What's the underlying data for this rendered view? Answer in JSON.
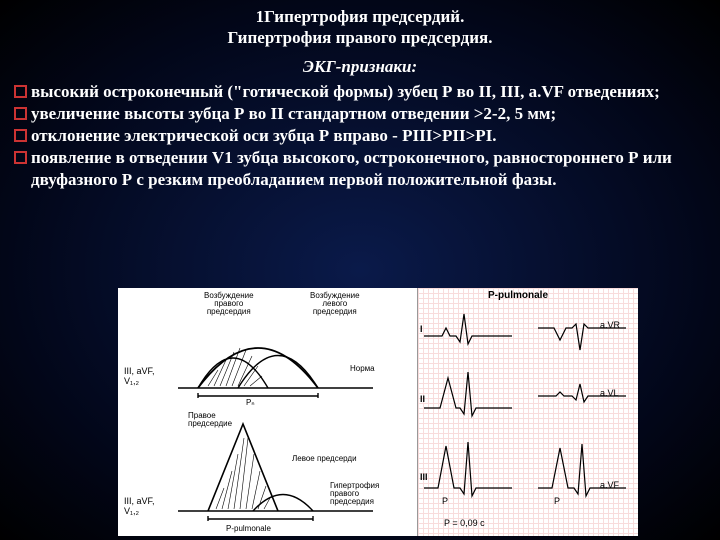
{
  "title1": "1Гипертрофия предсердий.",
  "title2": "Гипертрофия правого предсердия.",
  "subtitle": "ЭКГ-признаки:",
  "bullets": [
    "высокий остроконечный (\"готической формы) зубец Р во II, III, a.VF отведениях;",
    "увеличение высоты зубца Р во II стандартном отведении >2-2, 5 мм;",
    "отклонение электрической оси зубца Р вправо - PIII>PII>PI.",
    "появление в отведении V1 зубца высокого, остроконечного, равностороннего Р или двуфазного Р с резким преобладанием первой положительной фазы."
  ],
  "figure": {
    "left": {
      "top_labels": {
        "right_atrium": "Возбуждение\nправого\nпредсердия",
        "left_atrium": "Возбуждение\nлевого\nпредсердия",
        "norma": "Норма",
        "leads_top": "III, aVF,\nV₁,₂",
        "pn": "Pₙ",
        "right_atrium2": "Правое\nпредсердие",
        "left_atrium2": "Левое предсерди",
        "hypertrophy": "Гипертрофия\nправого\nпредсердия",
        "leads_bot": "III, aVF,\nV₁,₂",
        "p_pulmonale": "P-pulmonale"
      }
    },
    "right": {
      "header": "P-pulmonale",
      "leads_left": [
        "I",
        "II",
        "III"
      ],
      "leads_right": [
        "a.VR",
        "a.VL",
        "a.VF"
      ],
      "p_label": "P",
      "p_duration": "P = 0,09 c"
    }
  }
}
